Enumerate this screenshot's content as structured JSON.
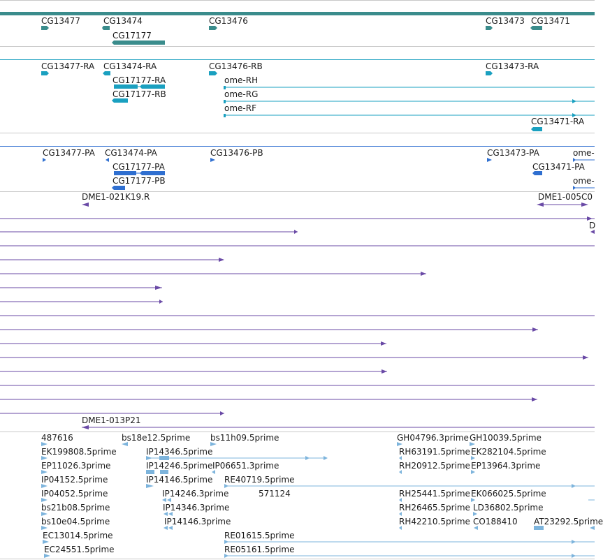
{
  "colors": {
    "gene": "#3a8c8c",
    "transcript": "#1aa0c0",
    "protein": "#2f6fd0",
    "clone": "#6a4aa6",
    "est": "#7db4dc",
    "separator": "#c8c8c8"
  },
  "tracks": {
    "genes": {
      "labels": [
        "CG13477",
        "CG13474",
        "CG17177",
        "CG13476",
        "CG13473",
        "CG13471"
      ]
    },
    "transcripts": {
      "labels": [
        "CG13477-RA",
        "CG13474-RA",
        "CG17177-RA",
        "CG17177-RB",
        "CG13476-RB",
        "ome-RH",
        "ome-RG",
        "ome-RF",
        "CG13473-RA",
        "CG13471-RA"
      ]
    },
    "proteins": {
      "labels": [
        "CG13477-PA",
        "CG13474-PA",
        "CG17177-PA",
        "CG17177-PB",
        "CG13476-PB",
        "CG13473-PA",
        "ome-",
        "CG13471-PA",
        "ome-"
      ]
    },
    "clones": {
      "labels": [
        "DME1-021K19.R",
        "DME1-005C0",
        "D",
        "DME1-013P21"
      ]
    },
    "ests": {
      "labels": [
        "487616",
        "bs18e12.5prime",
        "bs11h09.5prime",
        "GH04796.3prime",
        "GH10039.5prime",
        "EK199808.5prime",
        "IP14346.5prime",
        "RH63191.5prime",
        "EK282104.5prime",
        "EP11026.3prime",
        "IP14246.5prime",
        "IP06651.3prime",
        "RH20912.5prime",
        "EP13964.3prime",
        "IP04152.5prime",
        "IP14146.5prime",
        "RE40719.5prime",
        "IP04052.5prime",
        "IP14246.3prime",
        "571124",
        "RH25441.5prime",
        "EK066025.5prime",
        "bs21b08.5prime",
        "IP14346.3prime",
        "RH26465.5prime",
        "LD36802.5prime",
        "bs10e04.5prime",
        "IP14146.3prime",
        "RH42210.5prime",
        "CO188410",
        "AT23292.5prime",
        "EC13014.5prime",
        "RE01615.5prime",
        "EC24551.5prime",
        "RE05161.5prime"
      ]
    }
  }
}
